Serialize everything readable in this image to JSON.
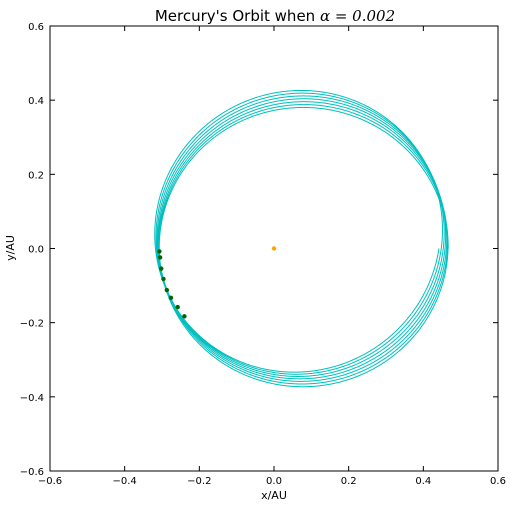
{
  "chart_data": {
    "type": "line",
    "title": "Mercury's Orbit when ",
    "title_math": "α = 0.002",
    "xlabel": "x/AU",
    "ylabel": "y/AU",
    "xlim": [
      -0.6,
      0.6
    ],
    "ylim": [
      -0.6,
      0.6
    ],
    "xticks": [
      -0.6,
      -0.4,
      -0.2,
      0.0,
      0.2,
      0.4,
      0.6
    ],
    "yticks": [
      -0.6,
      -0.4,
      -0.2,
      0.0,
      0.2,
      0.4,
      0.6
    ],
    "xtick_labels": [
      "−0.6",
      "−0.4",
      "−0.2",
      "0.0",
      "0.2",
      "0.4",
      "0.6"
    ],
    "ytick_labels": [
      "−0.6",
      "−0.4",
      "−0.2",
      "0.0",
      "0.2",
      "0.4",
      "0.6"
    ],
    "grid": false,
    "colors": {
      "orbit": "#00bfbf",
      "sun": "#ffa500",
      "perihelion": "#006400"
    },
    "orbit": {
      "semi_major_axis": 0.387,
      "eccentricity": 0.206,
      "revolutions": 7,
      "initial_perihelion_angle_deg": 180,
      "precession_per_revolution_deg": 5.5
    },
    "sun": {
      "x": 0.0,
      "y": 0.0
    },
    "perihelion_points": [
      {
        "x": -0.307,
        "y": -0.008
      },
      {
        "x": -0.305,
        "y": -0.024
      },
      {
        "x": -0.302,
        "y": -0.054
      },
      {
        "x": -0.296,
        "y": -0.082
      },
      {
        "x": -0.287,
        "y": -0.112
      },
      {
        "x": -0.276,
        "y": -0.133
      },
      {
        "x": -0.258,
        "y": -0.158
      },
      {
        "x": -0.24,
        "y": -0.183
      }
    ]
  }
}
